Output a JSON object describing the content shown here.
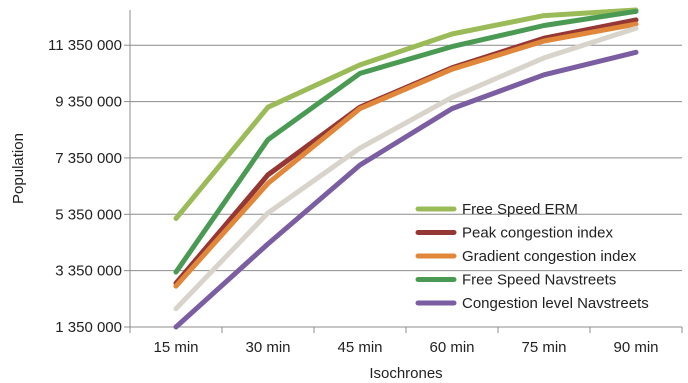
{
  "chart_data": {
    "type": "line",
    "title": "",
    "xlabel": "Isochrones",
    "ylabel": "Population",
    "categories": [
      "15 min",
      "30 min",
      "45 min",
      "60 min",
      "75 min",
      "90 min"
    ],
    "ylim": [
      1350000,
      12600000
    ],
    "yticks": [
      1350000,
      3350000,
      5350000,
      7350000,
      9350000,
      11350000
    ],
    "ytick_labels": [
      "1 350 000",
      "3 350 000",
      "5 350 000",
      "7 350 000",
      "9 350 000",
      "11 350 000"
    ],
    "grid": "horizontal",
    "legend_position": "bottom-right",
    "series": [
      {
        "name": "Free Speed ERM",
        "color": "#9bbb59",
        "values": [
          5200000,
          9150000,
          10650000,
          11750000,
          12400000,
          12600000
        ]
      },
      {
        "name": "Peak congestion index",
        "color": "#953735",
        "values": [
          2900000,
          6750000,
          9150000,
          10550000,
          11600000,
          12250000
        ]
      },
      {
        "name": "Gradient congestion index",
        "color": "#e0873a",
        "values": [
          2800000,
          6450000,
          9100000,
          10500000,
          11500000,
          12100000
        ]
      },
      {
        "name": "Free Speed Navstreets",
        "color": "#4a9a54",
        "values": [
          3300000,
          8000000,
          10350000,
          11300000,
          12050000,
          12550000
        ]
      },
      {
        "name": "",
        "color": "#d9d4cb",
        "values": [
          2000000,
          5400000,
          7700000,
          9500000,
          10900000,
          11950000
        ]
      },
      {
        "name": "Congestion level Navstreets",
        "color": "#7a5ea1",
        "values": [
          1350000,
          4300000,
          7100000,
          9100000,
          10300000,
          11100000
        ]
      }
    ]
  }
}
